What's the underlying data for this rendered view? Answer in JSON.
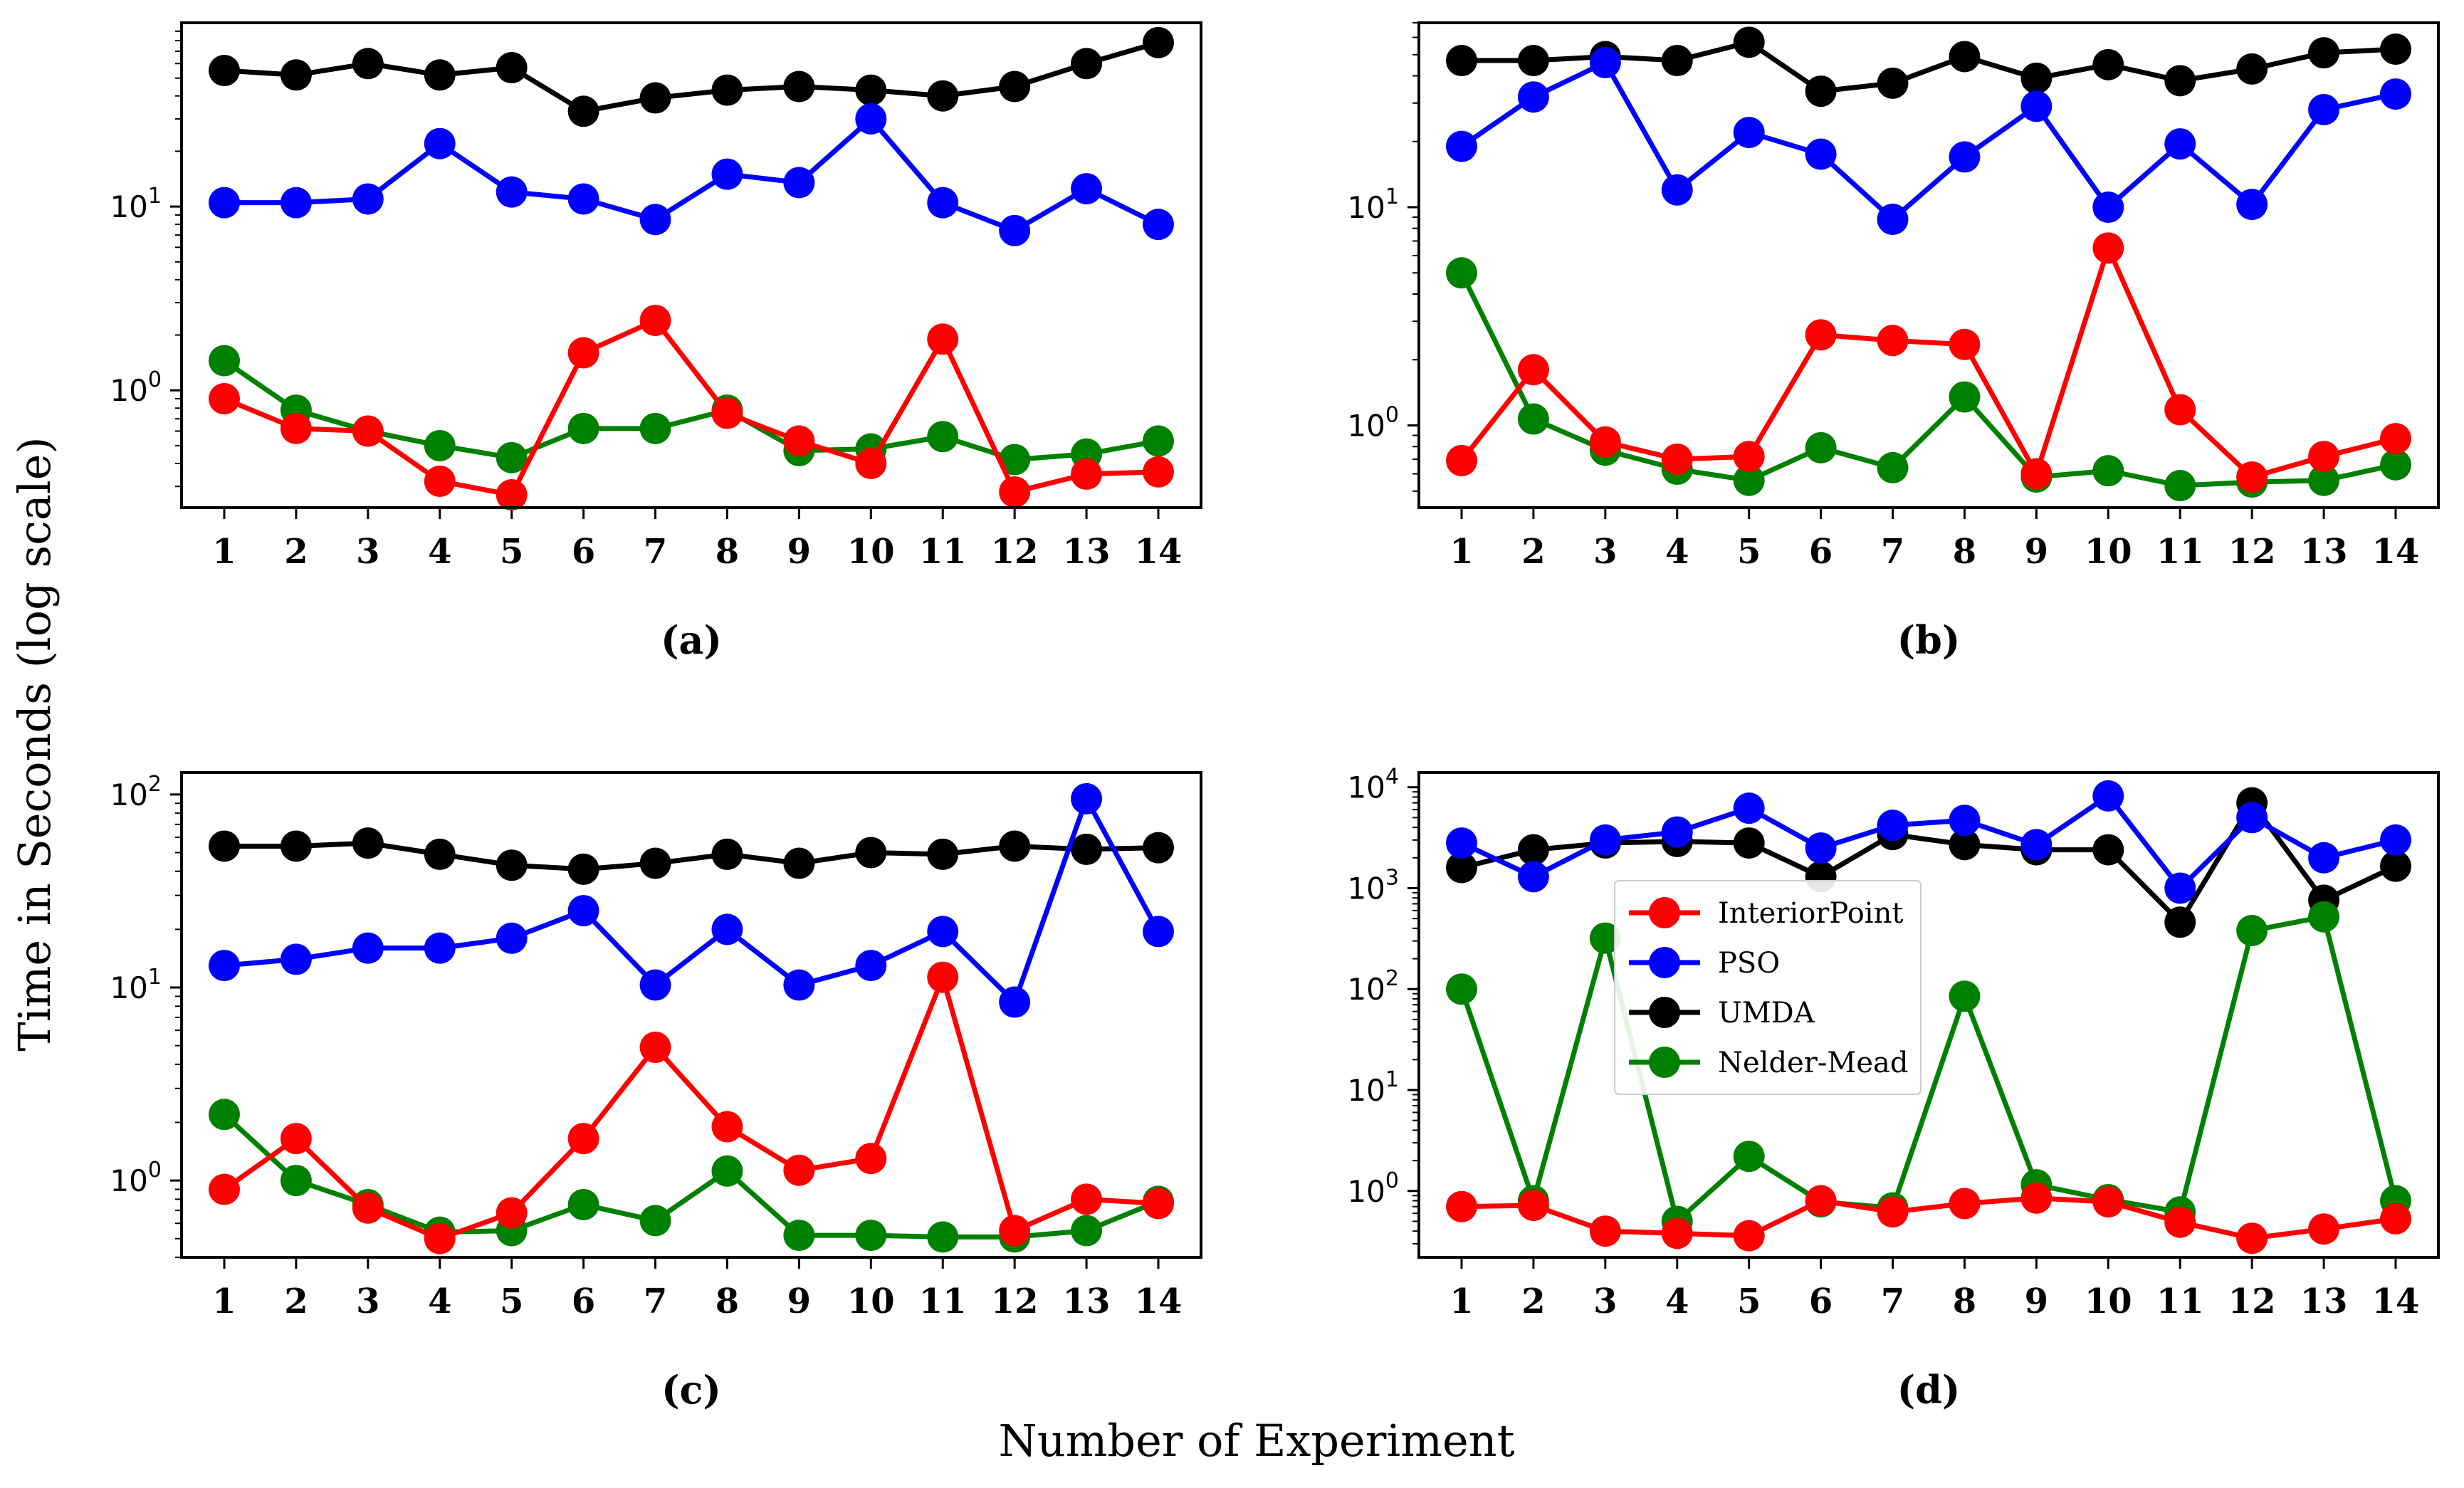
{
  "figure": {
    "ylabel": "Time in Seconds (log scale)",
    "xlabel": "Number of Experiment",
    "colors": {
      "InteriorPoint": "#ff0000",
      "PSO": "#0000ff",
      "UMDA": "#000000",
      "Nelder-Mead": "#008000"
    },
    "legend": {
      "panel": "d",
      "placement": "center-left",
      "entries": [
        "InteriorPoint",
        "PSO",
        "UMDA",
        "Nelder-Mead"
      ]
    }
  },
  "chart_data": [
    {
      "panel": "a",
      "label": "(a)",
      "type": "line",
      "yscale": "log",
      "ylim": [
        0.23,
        100
      ],
      "yticks": [
        {
          "value": 1,
          "base": "10",
          "exp": "0"
        },
        {
          "value": 10,
          "base": "10",
          "exp": "1"
        }
      ],
      "categories": [
        "1",
        "2",
        "3",
        "4",
        "5",
        "6",
        "7",
        "8",
        "9",
        "10",
        "11",
        "12",
        "13",
        "14"
      ],
      "series": [
        {
          "name": "UMDA",
          "values": [
            55,
            52,
            60,
            52,
            57,
            33,
            39,
            43,
            45,
            43,
            40,
            45,
            60,
            78
          ]
        },
        {
          "name": "PSO",
          "values": [
            10.5,
            10.5,
            11,
            22,
            12,
            11,
            8.5,
            15,
            13.5,
            30,
            10.5,
            7.4,
            12.5,
            8
          ]
        },
        {
          "name": "Nelder-Mead",
          "values": [
            1.45,
            0.78,
            0.6,
            0.5,
            0.43,
            0.62,
            0.62,
            0.78,
            0.47,
            0.48,
            0.56,
            0.42,
            0.45,
            0.53
          ]
        },
        {
          "name": "InteriorPoint",
          "values": [
            0.9,
            0.62,
            0.6,
            0.32,
            0.27,
            1.6,
            2.4,
            0.75,
            0.53,
            0.4,
            1.9,
            0.28,
            0.35,
            0.36
          ]
        }
      ]
    },
    {
      "panel": "b",
      "label": "(b)",
      "type": "line",
      "yscale": "log",
      "ylim": [
        0.42,
        70
      ],
      "yticks": [
        {
          "value": 1,
          "base": "10",
          "exp": "0"
        },
        {
          "value": 10,
          "base": "10",
          "exp": "1"
        }
      ],
      "categories": [
        "1",
        "2",
        "3",
        "4",
        "5",
        "6",
        "7",
        "8",
        "9",
        "10",
        "11",
        "12",
        "13",
        "14"
      ],
      "series": [
        {
          "name": "UMDA",
          "values": [
            47,
            47,
            49,
            47,
            57,
            34,
            37,
            49,
            39,
            45,
            38,
            43,
            51,
            53
          ]
        },
        {
          "name": "PSO",
          "values": [
            19,
            32,
            46,
            12,
            22,
            17.5,
            8.8,
            17,
            29,
            10,
            19.5,
            10.3,
            28,
            33
          ]
        },
        {
          "name": "Nelder-Mead",
          "values": [
            5,
            1.07,
            0.77,
            0.63,
            0.56,
            0.79,
            0.64,
            1.35,
            0.58,
            0.62,
            0.53,
            0.55,
            0.56,
            0.66
          ]
        },
        {
          "name": "InteriorPoint",
          "values": [
            0.69,
            1.8,
            0.84,
            0.7,
            0.72,
            2.6,
            2.45,
            2.35,
            0.6,
            6.5,
            1.18,
            0.58,
            0.72,
            0.87
          ]
        }
      ]
    },
    {
      "panel": "c",
      "label": "(c)",
      "type": "line",
      "yscale": "log",
      "ylim": [
        0.4,
        130
      ],
      "yticks": [
        {
          "value": 1,
          "base": "10",
          "exp": "0"
        },
        {
          "value": 10,
          "base": "10",
          "exp": "1"
        },
        {
          "value": 100,
          "base": "10",
          "exp": "2"
        }
      ],
      "categories": [
        "1",
        "2",
        "3",
        "4",
        "5",
        "6",
        "7",
        "8",
        "9",
        "10",
        "11",
        "12",
        "13",
        "14"
      ],
      "series": [
        {
          "name": "UMDA",
          "values": [
            54,
            54,
            56,
            49,
            43,
            41,
            44,
            49,
            44,
            50,
            49,
            54,
            52,
            53
          ]
        },
        {
          "name": "PSO",
          "values": [
            13,
            14,
            16,
            16,
            18,
            25,
            10.3,
            20,
            10.3,
            13,
            19.5,
            8.4,
            95,
            19.5
          ]
        },
        {
          "name": "Nelder-Mead",
          "values": [
            2.2,
            1.0,
            0.75,
            0.54,
            0.55,
            0.75,
            0.62,
            1.12,
            0.52,
            0.52,
            0.51,
            0.51,
            0.55,
            0.78
          ]
        },
        {
          "name": "InteriorPoint",
          "values": [
            0.9,
            1.65,
            0.72,
            0.5,
            0.68,
            1.65,
            4.9,
            1.9,
            1.13,
            1.3,
            11.3,
            0.55,
            0.8,
            0.76
          ]
        }
      ]
    },
    {
      "panel": "d",
      "label": "(d)",
      "type": "line",
      "yscale": "log",
      "ylim": [
        0.22,
        14000
      ],
      "yticks": [
        {
          "value": 1,
          "base": "10",
          "exp": "0"
        },
        {
          "value": 10,
          "base": "10",
          "exp": "1"
        },
        {
          "value": 100,
          "base": "10",
          "exp": "2"
        },
        {
          "value": 1000,
          "base": "10",
          "exp": "3"
        },
        {
          "value": 10000,
          "base": "10",
          "exp": "4"
        }
      ],
      "categories": [
        "1",
        "2",
        "3",
        "4",
        "5",
        "6",
        "7",
        "8",
        "9",
        "10",
        "11",
        "12",
        "13",
        "14"
      ],
      "series": [
        {
          "name": "PSO",
          "values": [
            2800,
            1300,
            3000,
            3600,
            6200,
            2500,
            4200,
            4700,
            2700,
            8200,
            1000,
            5000,
            2000,
            3000
          ]
        },
        {
          "name": "UMDA",
          "values": [
            1600,
            2400,
            2800,
            2900,
            2800,
            1300,
            3400,
            2700,
            2400,
            2400,
            460,
            7000,
            760,
            1650
          ]
        },
        {
          "name": "Nelder-Mead",
          "values": [
            100,
            0.8,
            320,
            0.5,
            2.2,
            0.78,
            0.68,
            85,
            1.15,
            0.82,
            0.62,
            380,
            520,
            0.8
          ]
        },
        {
          "name": "InteriorPoint",
          "values": [
            0.7,
            0.72,
            0.4,
            0.38,
            0.36,
            0.8,
            0.62,
            0.75,
            0.85,
            0.78,
            0.49,
            0.34,
            0.42,
            0.53
          ]
        }
      ]
    }
  ]
}
